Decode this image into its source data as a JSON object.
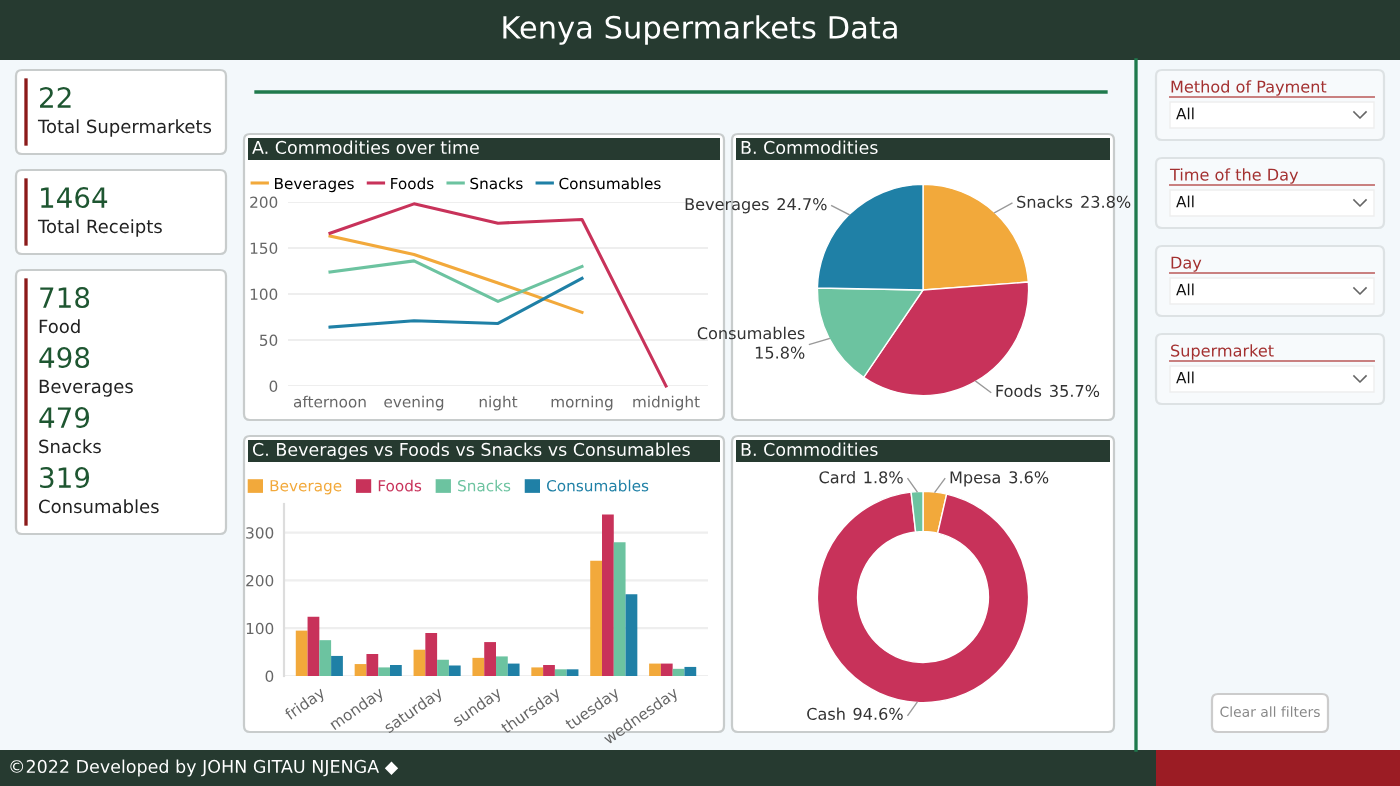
{
  "chart_data": [
    {
      "type": "other",
      "title": "Kenya Supermarkets Data",
      "categories": [
        "Total Supermarkets",
        "Total Receipts",
        "Food",
        "Beverages",
        "Snacks",
        "Consumables"
      ],
      "values": [
        22,
        1464,
        718,
        498,
        479,
        319
      ],
      "data_labels": true,
      "annotations": [
        "©2022 Developed by JOHN GITAU NJENGA ◆"
      ]
    },
    {
      "type": "line",
      "title": "A. Commodities over time",
      "categories": [
        "afternoon",
        "evening",
        "night",
        "morning",
        "midnight"
      ],
      "ylim": [
        0,
        200
      ],
      "yticks": [
        0,
        50,
        100,
        150,
        200
      ],
      "grid": "y",
      "legend": "top left",
      "marker": "none",
      "line_style": "solid",
      "series": [
        {
          "name": "Beverages",
          "color": "#f2a93b",
          "values": [
            163,
            143,
            112,
            80,
            null
          ]
        },
        {
          "name": "Foods",
          "color": "#c8325a",
          "values": [
            166,
            198,
            177,
            181,
            0
          ]
        },
        {
          "name": "Snacks",
          "color": "#6cc3a0",
          "values": [
            124,
            136,
            92,
            130,
            null
          ]
        },
        {
          "name": "Consumables",
          "color": "#1f80a6",
          "values": [
            64,
            71,
            68,
            117,
            null
          ]
        }
      ]
    },
    {
      "type": "pie",
      "title": "B. Commodities",
      "categories": [
        "Snacks",
        "Foods",
        "Consumables",
        "Beverages"
      ],
      "values": [
        23.8,
        35.7,
        15.8,
        24.7
      ],
      "value_labels": [
        "23.8%",
        "35.7%",
        "15.8%",
        "24.7%"
      ],
      "colors": [
        "#f2a93b",
        "#c8325a",
        "#6cc3a0",
        "#1f80a6"
      ]
    },
    {
      "type": "bar",
      "title": "C. Beverages vs Foods vs Snacks vs Consumables",
      "categories": [
        "friday",
        "monday",
        "saturday",
        "sunday",
        "thursday",
        "tuesday",
        "wednesday"
      ],
      "ylim": [
        0,
        360
      ],
      "yticks": [
        0,
        100,
        200,
        300
      ],
      "grid": "y",
      "legend": "top left",
      "series": [
        {
          "name": "Beverage",
          "color": "#f2a93b",
          "values": [
            95,
            25,
            55,
            38,
            18,
            241,
            26
          ]
        },
        {
          "name": "Foods",
          "color": "#c8325a",
          "values": [
            124,
            46,
            90,
            71,
            23,
            338,
            26
          ]
        },
        {
          "name": "Snacks",
          "color": "#6cc3a0",
          "values": [
            75,
            18,
            34,
            41,
            14,
            280,
            15
          ]
        },
        {
          "name": "Consumables",
          "color": "#1f80a6",
          "values": [
            42,
            23,
            22,
            26,
            14,
            171,
            19
          ]
        }
      ]
    },
    {
      "type": "donut",
      "title": "B. Commodities",
      "categories": [
        "Mpesa",
        "Cash",
        "Card"
      ],
      "values": [
        3.6,
        94.6,
        1.8
      ],
      "value_labels": [
        "3.6%",
        "94.6%",
        "1.8%"
      ],
      "colors": [
        "#f2a93b",
        "#c8325a",
        "#6cc3a0"
      ]
    },
    {
      "type": "other",
      "categories": [
        "Method of Payment",
        "Time of the Day",
        "Day",
        "Supermarket"
      ],
      "value_labels": [
        "All",
        "All",
        "All",
        "All"
      ],
      "annotations": [
        "Clear all filters"
      ]
    }
  ]
}
